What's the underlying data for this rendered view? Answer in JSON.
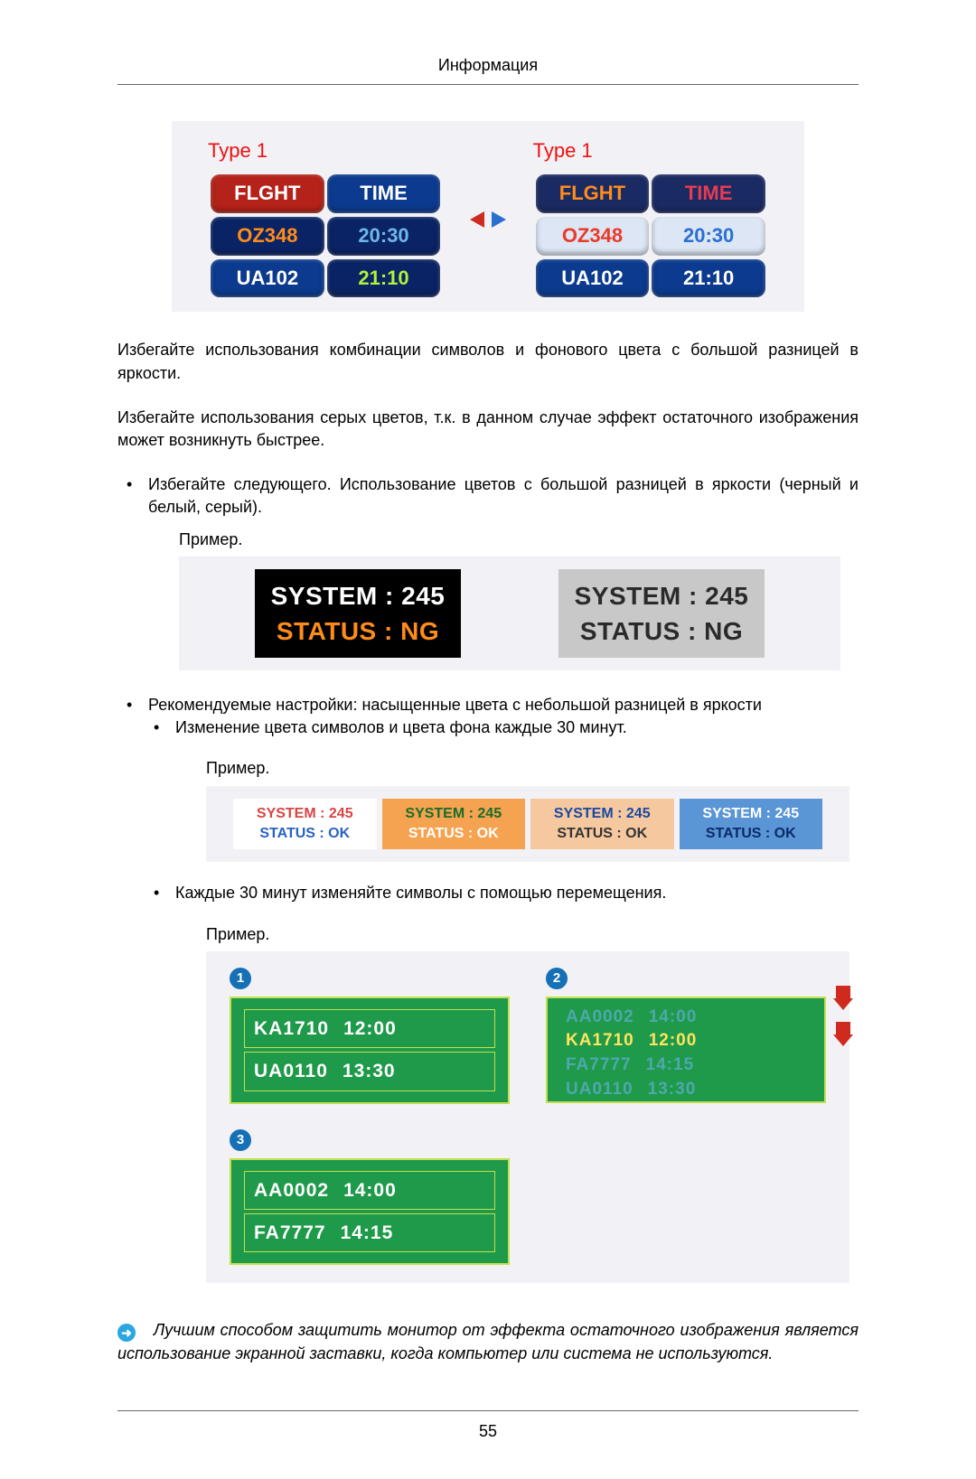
{
  "header": {
    "title": "Информация"
  },
  "footer": {
    "page": "55"
  },
  "figure_flight": {
    "left": {
      "title": "Type 1",
      "rows": [
        {
          "fl": "FLGHT",
          "tm": "TIME",
          "flColor": "#ffffff",
          "flBg": "#b42219",
          "tmColor": "#ffffff",
          "tmBg": "#0b3a8e"
        },
        {
          "fl": "OZ348",
          "tm": "20:30",
          "flColor": "#ff8c1a",
          "flBg": "#0a2364",
          "tmColor": "#6fb7e7",
          "tmBg": "#0a2364"
        },
        {
          "fl": "UA102",
          "tm": "21:10",
          "flColor": "#ffffff",
          "flBg": "#0b3a8e",
          "tmColor": "#b1f13a",
          "tmBg": "#0a2364"
        }
      ]
    },
    "right": {
      "title": "Type 1",
      "rows": [
        {
          "fl": "FLGHT",
          "tm": "TIME",
          "flColor": "#ff8c1a",
          "flBg": "#1a2a63",
          "tmColor": "#e73b52",
          "tmBg": "#1a2a63"
        },
        {
          "fl": "OZ348",
          "tm": "20:30",
          "flColor": "#ea3a2a",
          "flBg": "#dce6f4",
          "tmColor": "#2a6fd3",
          "tmBg": "#dce6f4"
        },
        {
          "fl": "UA102",
          "tm": "21:10",
          "flColor": "#ffffff",
          "flBg": "#0b3a8e",
          "tmColor": "#ffffff",
          "tmBg": "#0b3a8e"
        }
      ]
    }
  },
  "para1": "Избегайте использования комбинации символов и фонового цвета с большой разницей в яркости.",
  "para2": "Избегайте использования серых цветов, т.к. в данном случае эффект остаточного изображения может возникнуть быстрее.",
  "bullet1": "Избегайте следующего. Использование цветов с большой разницей в яркости (черный и белый, серый).",
  "example_label": "Пример.",
  "figure_sys": {
    "left": {
      "bg": "#000000",
      "l1_text": "SYSTEM : 245",
      "l1_color": "#ffffff",
      "l2_text": "STATUS : NG",
      "l2_color": "#ff8c1a"
    },
    "right": {
      "bg": "#c8c8c8",
      "l1_text": "SYSTEM : 245",
      "l1_color": "#2a2a2a",
      "l2_text": "STATUS : NG",
      "l2_color": "#2a2a2a"
    }
  },
  "bullet2": "Рекомендуемые настройки: насыщенные цвета с небольшой разницей в яркости",
  "bullet2a": "Изменение цвета символов и цвета фона каждые 30 минут.",
  "figure_swatch": [
    {
      "bg": "#ffffff",
      "l1": "SYSTEM : 245",
      "l1_color": "#d94545",
      "l2": "STATUS : OK",
      "l2_color": "#2a62c4"
    },
    {
      "bg": "#f5a350",
      "l1": "SYSTEM : 245",
      "l1_color": "#186d2a",
      "l2": "STATUS : OK",
      "l2_color": "#ffffff"
    },
    {
      "bg": "#f5c8a0",
      "l1": "SYSTEM : 245",
      "l1_color": "#1a4aa0",
      "l2": "STATUS : OK",
      "l2_color": "#333333"
    },
    {
      "bg": "#5a95d5",
      "l1": "SYSTEM : 245",
      "l1_color": "#ffffff",
      "l2": "STATUS : OK",
      "l2_color": "#0a2b6a"
    }
  ],
  "bullet2b": "Каждые 30 минут изменяйте символы с помощью перемещения.",
  "figure_scroll": {
    "p1": {
      "badge": "1",
      "rows": [
        {
          "a": "KA1710",
          "b": "12:00"
        },
        {
          "a": "UA0110",
          "b": "13:30"
        }
      ]
    },
    "p2": {
      "badge": "2",
      "rows": [
        {
          "a": "AA0002",
          "b": "14:00"
        },
        {
          "a": "KA1710",
          "b": "12:00",
          "main": true
        },
        {
          "a": "FA7777",
          "b": "14:15"
        },
        {
          "a": "UA0110",
          "b": "13:30"
        }
      ]
    },
    "p3": {
      "badge": "3",
      "rows": [
        {
          "a": "AA0002",
          "b": "14:00"
        },
        {
          "a": "FA7777",
          "b": "14:15"
        }
      ]
    }
  },
  "note": "Лучшим способом защитить монитор от эффекта остаточного изображения является использование экранной заставки, когда компьютер или система не используются.",
  "note_icon": "➜"
}
